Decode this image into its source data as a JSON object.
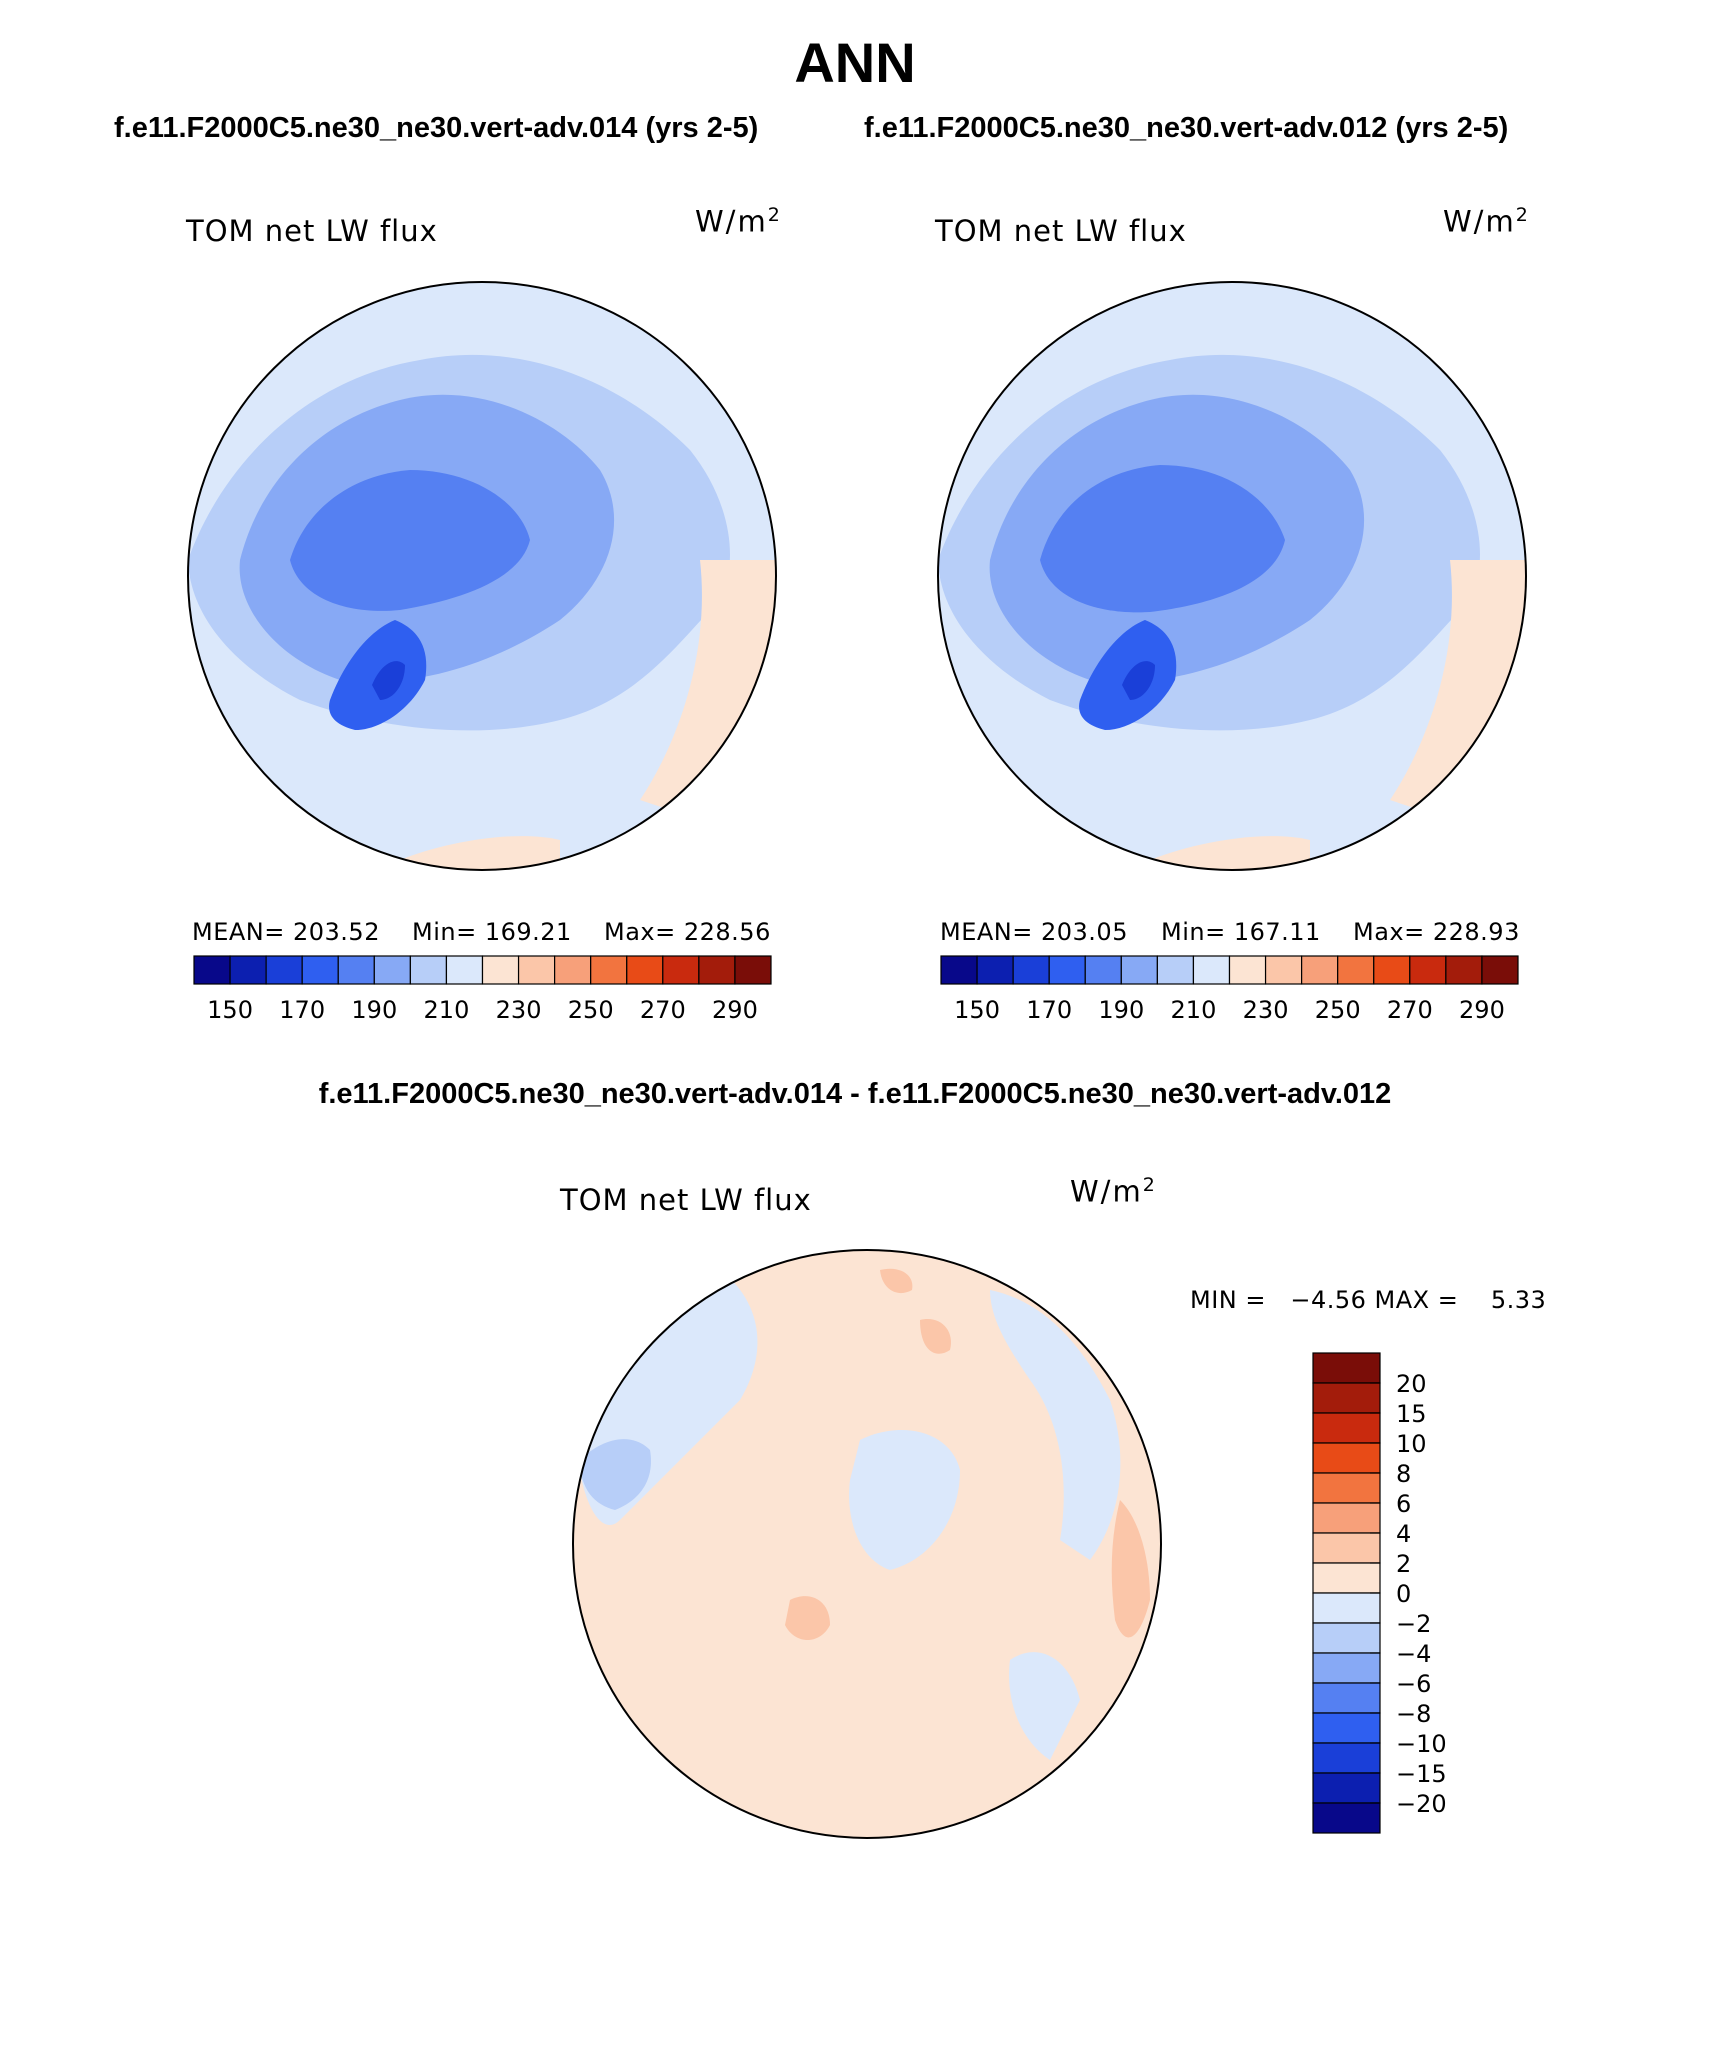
{
  "page_title": "ANN",
  "case1_title": "f.e11.F2000C5.ne30_ne30.vert-adv.014 (yrs 2-5)",
  "case2_title": "f.e11.F2000C5.ne30_ne30.vert-adv.012 (yrs 2-5)",
  "diff_title": "f.e11.F2000C5.ne30_ne30.vert-adv.014 - f.e11.F2000C5.ne30_ne30.vert-adv.012",
  "colors": {
    "abs_levels": [
      "#08088a",
      "#0c1fb0",
      "#1a3fd8",
      "#2f5ff0",
      "#5580f2",
      "#87a9f5",
      "#b7cef8",
      "#dbe8fb",
      "#fce4d3",
      "#fbc6a9",
      "#f7a07a",
      "#f2743f",
      "#e84b17",
      "#c92a0e",
      "#a31c0b",
      "#7a0d08"
    ],
    "diff_levels": [
      "#08088a",
      "#0c1fb0",
      "#1a3fd8",
      "#2f5ff0",
      "#5580f2",
      "#87a9f5",
      "#b7cef8",
      "#dbe8fb",
      "#fce4d3",
      "#fbc6a9",
      "#f7a07a",
      "#f2743f",
      "#e84b17",
      "#c92a0e",
      "#a31c0b",
      "#7a0d08"
    ],
    "coast": "#000000"
  },
  "chart_data": [
    {
      "type": "heatmap",
      "projection": "north-polar-stereographic",
      "title": "TOM net LW flux",
      "units_base": "W/m",
      "units_exp": "2",
      "case": "f.e11.F2000C5.ne30_ne30.vert-adv.014 (yrs 2-5)",
      "mean_text": "MEAN= 203.52",
      "min_text": "Min= 169.21",
      "max_text": "Max= 228.56",
      "mean": 203.52,
      "min": 169.21,
      "max": 228.56,
      "colorbar_ticks": [
        "150",
        "170",
        "190",
        "210",
        "230",
        "250",
        "270",
        "290"
      ]
    },
    {
      "type": "heatmap",
      "projection": "north-polar-stereographic",
      "title": "TOM net LW flux",
      "units_base": "W/m",
      "units_exp": "2",
      "case": "f.e11.F2000C5.ne30_ne30.vert-adv.012 (yrs 2-5)",
      "mean_text": "MEAN= 203.05",
      "min_text": "Min= 167.11",
      "max_text": "Max= 228.93",
      "mean": 203.05,
      "min": 167.11,
      "max": 228.93,
      "colorbar_ticks": [
        "150",
        "170",
        "190",
        "210",
        "230",
        "250",
        "270",
        "290"
      ]
    },
    {
      "type": "heatmap",
      "projection": "north-polar-stereographic",
      "title": "TOM net LW flux",
      "units_base": "W/m",
      "units_exp": "2",
      "case": "f.e11.F2000C5.ne30_ne30.vert-adv.014 - f.e11.F2000C5.ne30_ne30.vert-adv.012",
      "minmax_text": "MIN =   −4.56 MAX =    5.33",
      "min": -4.56,
      "max": 5.33,
      "colorbar_ticks": [
        "20",
        "15",
        "10",
        "8",
        "6",
        "4",
        "2",
        "0",
        "−2",
        "−4",
        "−6",
        "−8",
        "−10",
        "−15",
        "−20"
      ]
    }
  ]
}
